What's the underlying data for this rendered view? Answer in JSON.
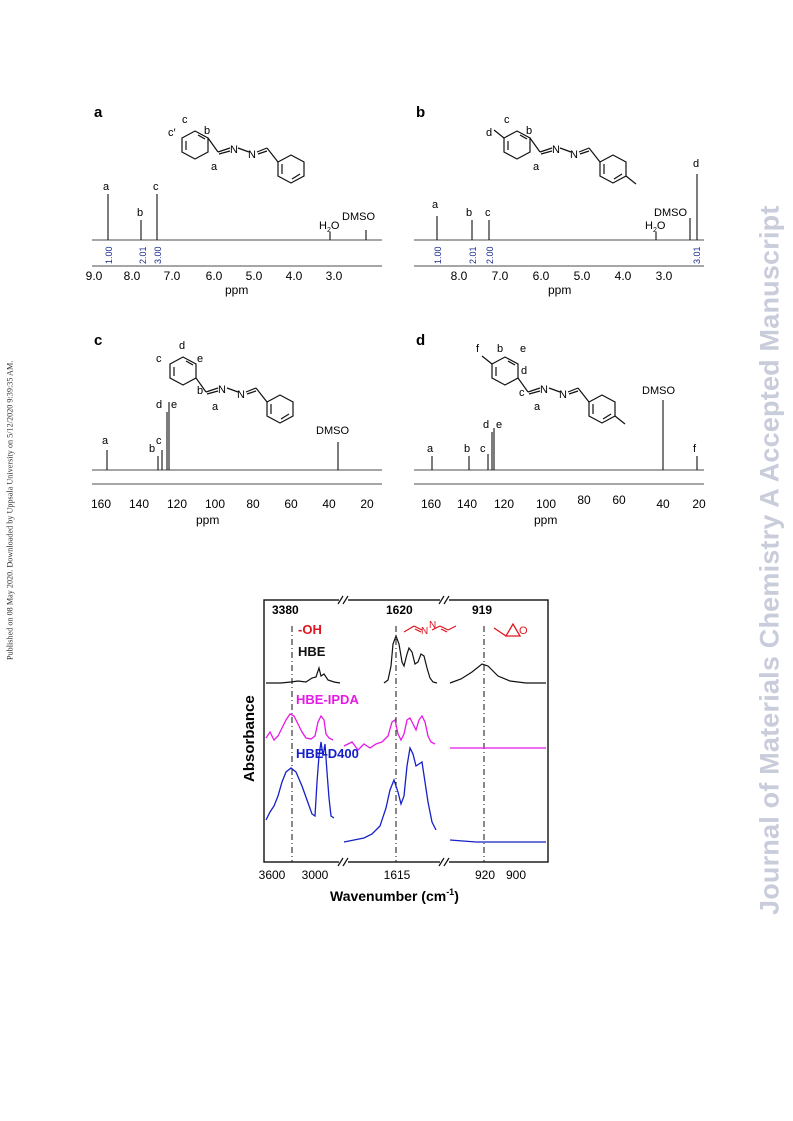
{
  "journal_watermark": "Journal of Materials Chemistry A Accepted Manuscript",
  "download_notice": "Published on 08 May 2020. Downloaded by Uppsala University on 5/12/2020 9:39:35 AM.",
  "nmr_panels": [
    {
      "letter": "a",
      "type": "line",
      "xlabel": "ppm",
      "tick_labels": [
        "9.0",
        "8.0",
        "7.0",
        "6.0",
        "5.0",
        "4.0",
        "3.0"
      ],
      "structure_labels": [
        "c′",
        "c",
        "b",
        "a"
      ],
      "peak_labels": [
        "a",
        "b",
        "c",
        "H2O",
        "DMSO"
      ],
      "integrals": [
        "1.00",
        "2.01",
        "3.00"
      ],
      "peaks_ppm": [
        {
          "label": "a",
          "ppm": 8.68
        },
        {
          "label": "b",
          "ppm": 7.82
        },
        {
          "label": "c",
          "ppm": 7.48
        },
        {
          "label": "H2O",
          "ppm": 3.33
        },
        {
          "label": "DMSO",
          "ppm": 2.5
        }
      ]
    },
    {
      "letter": "b",
      "type": "line",
      "xlabel": "ppm",
      "tick_labels": [
        "8.0",
        "7.0",
        "6.0",
        "5.0",
        "4.0",
        "3.0"
      ],
      "structure_labels": [
        "d",
        "c",
        "b",
        "a"
      ],
      "peak_labels": [
        "a",
        "b",
        "c",
        "H2O",
        "DMSO",
        "d"
      ],
      "integrals": [
        "1.00",
        "2.01",
        "2.00",
        "3.01"
      ],
      "peaks_ppm": [
        {
          "label": "a",
          "ppm": 8.62
        },
        {
          "label": "b",
          "ppm": 7.7
        },
        {
          "label": "c",
          "ppm": 7.29
        },
        {
          "label": "H2O",
          "ppm": 3.33
        },
        {
          "label": "DMSO",
          "ppm": 2.5
        },
        {
          "label": "d",
          "ppm": 2.35
        }
      ]
    },
    {
      "letter": "c",
      "type": "line",
      "xlabel": "ppm",
      "tick_labels": [
        "160",
        "140",
        "120",
        "100",
        "80",
        "60",
        "40",
        "20"
      ],
      "structure_labels": [
        "d",
        "c",
        "e",
        "b",
        "a"
      ],
      "peak_labels": [
        "a",
        "b",
        "c",
        "d",
        "e",
        "DMSO"
      ],
      "peaks_ppm": [
        {
          "label": "a",
          "ppm": 161.9
        },
        {
          "label": "b",
          "ppm": 133.9
        },
        {
          "label": "c",
          "ppm": 131.7
        },
        {
          "label": "d",
          "ppm": 129.0
        },
        {
          "label": "e",
          "ppm": 128.4
        },
        {
          "label": "DMSO",
          "ppm": 39.5
        }
      ]
    },
    {
      "letter": "d",
      "type": "line",
      "xlabel": "ppm",
      "tick_labels": [
        "160",
        "140",
        "120",
        "100",
        "80",
        "60",
        "40",
        "20"
      ],
      "structure_labels": [
        "f",
        "b",
        "e",
        "d",
        "c",
        "a"
      ],
      "peak_labels": [
        "a",
        "b",
        "c",
        "d",
        "e",
        "DMSO",
        "f"
      ],
      "peaks_ppm": [
        {
          "label": "a",
          "ppm": 161.7
        },
        {
          "label": "b",
          "ppm": 141.6
        },
        {
          "label": "c",
          "ppm": 131.5
        },
        {
          "label": "d",
          "ppm": 129.6
        },
        {
          "label": "e",
          "ppm": 128.4
        },
        {
          "label": "DMSO",
          "ppm": 39.5
        },
        {
          "label": "f",
          "ppm": 21.2
        }
      ]
    }
  ],
  "chart_data": {
    "type": "line",
    "xlabel": "Wavenumber (cm",
    "xlabel_sup": "-1",
    "xlabel_close": ")",
    "ylabel": "Absorbance",
    "x_tick_labels": [
      "3600",
      "3000",
      "1615",
      "920",
      "900"
    ],
    "reference_lines": [
      {
        "label": "3380",
        "group": "-OH",
        "group_color": "#e0141e"
      },
      {
        "label": "1620",
        "group": "azine",
        "group_color": "#e0141e"
      },
      {
        "label": "919",
        "group": "epoxide",
        "group_color": "#e0141e"
      }
    ],
    "series": [
      {
        "name": "HBE",
        "color": "#111111"
      },
      {
        "name": "HBE-IPDA",
        "color": "#e619e6"
      },
      {
        "name": "HBE-D400",
        "color": "#1520c8"
      }
    ],
    "oh_label": "-OH",
    "oh_label_color": "#e0141e"
  }
}
